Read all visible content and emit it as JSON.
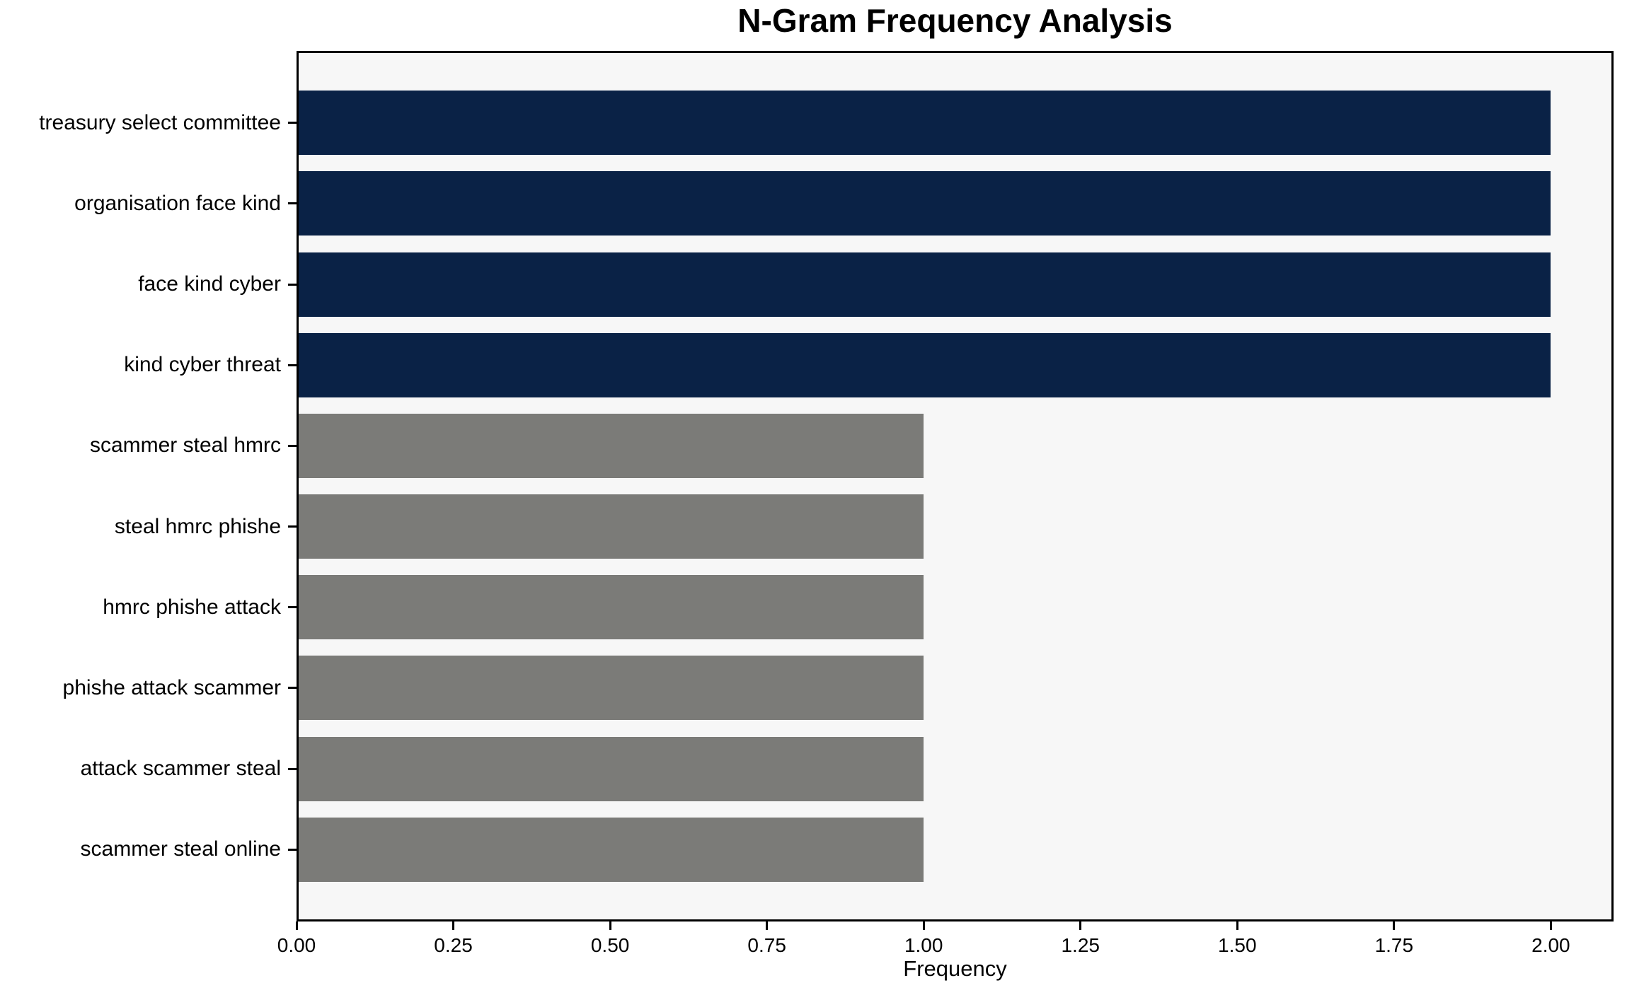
{
  "chart_data": {
    "type": "bar",
    "orientation": "horizontal",
    "title": "N-Gram Frequency Analysis",
    "xlabel": "Frequency",
    "ylabel": "",
    "categories": [
      "treasury select committee",
      "organisation face kind",
      "face kind cyber",
      "kind cyber threat",
      "scammer steal hmrc",
      "steal hmrc phishe",
      "hmrc phishe attack",
      "phishe attack scammer",
      "attack scammer steal",
      "scammer steal online"
    ],
    "values": [
      2,
      2,
      2,
      2,
      1,
      1,
      1,
      1,
      1,
      1
    ],
    "bar_colors": [
      "#0a2246",
      "#0a2246",
      "#0a2246",
      "#0a2246",
      "#7b7b78",
      "#7b7b78",
      "#7b7b78",
      "#7b7b78",
      "#7b7b78",
      "#7b7b78"
    ],
    "xlim": [
      0,
      2.1
    ],
    "xticks": [
      0,
      0.25,
      0.5,
      0.75,
      1.0,
      1.25,
      1.5,
      1.75,
      2.0
    ],
    "xtick_labels": [
      "0.00",
      "0.25",
      "0.50",
      "0.75",
      "1.00",
      "1.25",
      "1.50",
      "1.75",
      "2.00"
    ],
    "grid": false,
    "legend": "none",
    "colors": {
      "high_frequency_bar": "#0a2246",
      "low_frequency_bar": "#7b7b78",
      "plot_background": "#f7f7f7",
      "figure_background": "#ffffff",
      "spine": "#000000",
      "text": "#000000"
    }
  }
}
